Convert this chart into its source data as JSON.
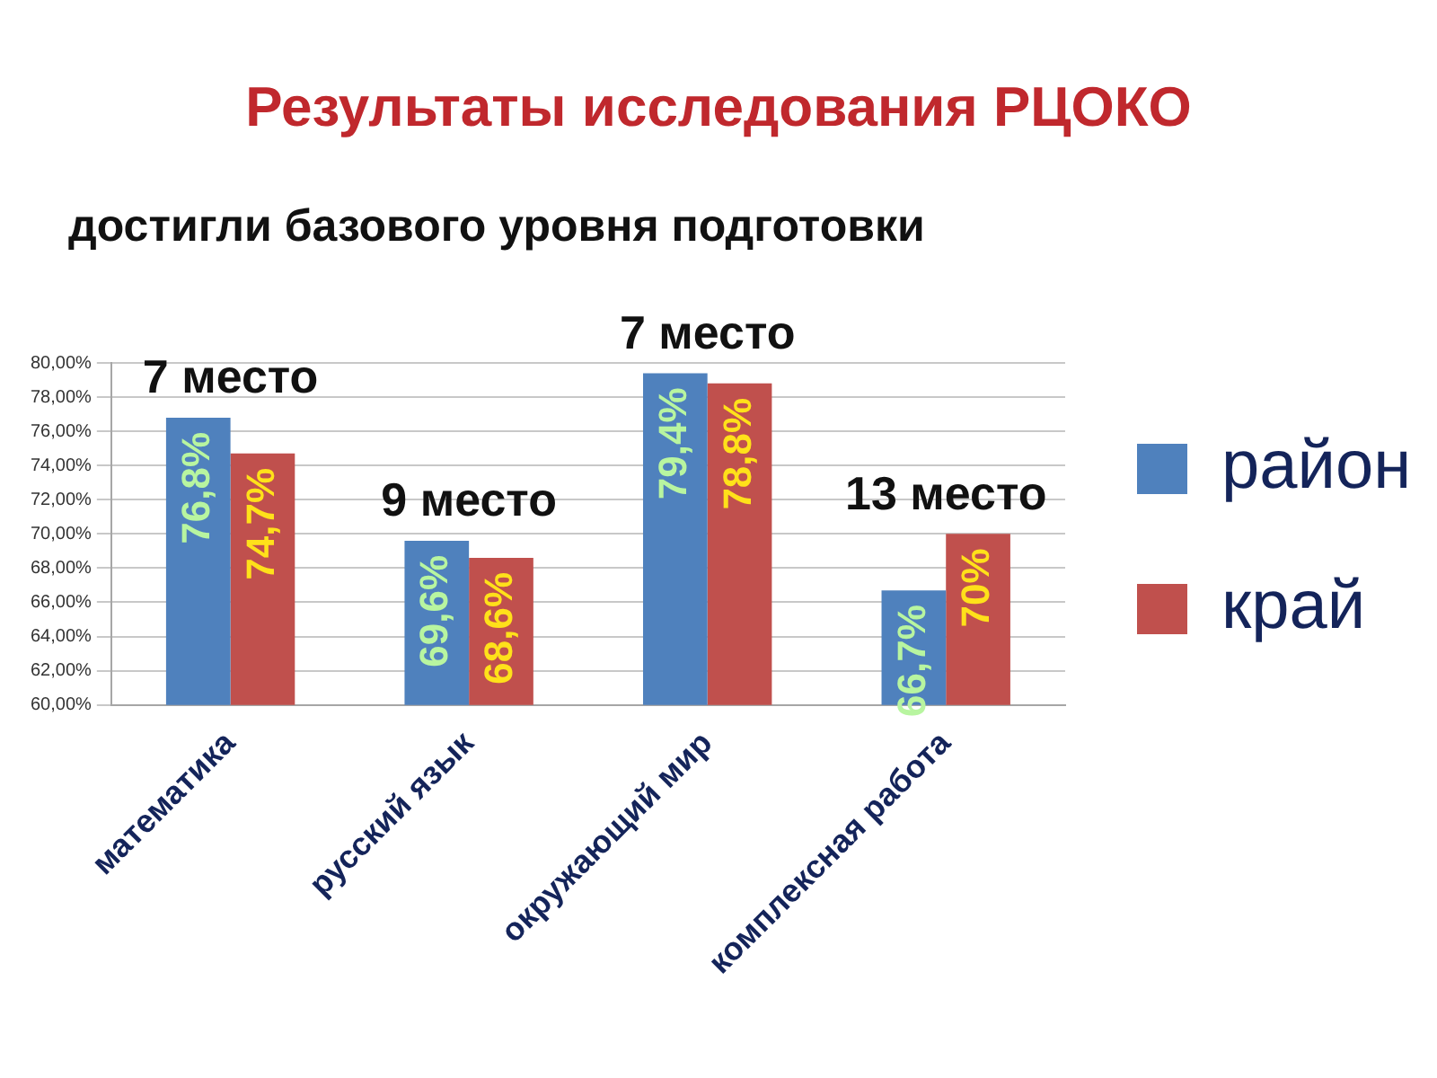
{
  "chart_data": {
    "type": "bar",
    "title": "Результаты исследования РЦОКО",
    "subtitle": "достигли базового уровня подготовки",
    "categories": [
      "математика",
      "русский язык",
      "окружающий мир",
      "комплексная работа"
    ],
    "series": [
      {
        "name": "район",
        "color": "#4f81bd",
        "values": [
          76.8,
          69.6,
          79.4,
          66.7
        ],
        "value_labels": [
          "76,8%",
          "69,6%",
          "79,4%",
          "66,7%"
        ]
      },
      {
        "name": "край",
        "color": "#c0504d",
        "values": [
          74.7,
          68.6,
          78.8,
          70
        ],
        "value_labels": [
          "74,7%",
          "68,6%",
          "78,8%",
          "70%"
        ]
      }
    ],
    "ylim": [
      60,
      80
    ],
    "yticks": [
      {
        "value": 60,
        "label": "60,00%"
      },
      {
        "value": 62,
        "label": "62,00%"
      },
      {
        "value": 64,
        "label": "64,00%"
      },
      {
        "value": 66,
        "label": "66,00%"
      },
      {
        "value": 68,
        "label": "68,00%"
      },
      {
        "value": 70,
        "label": "70,00%"
      },
      {
        "value": 72,
        "label": "72,00%"
      },
      {
        "value": 74,
        "label": "74,00%"
      },
      {
        "value": 76,
        "label": "76,00%"
      },
      {
        "value": 78,
        "label": "78,00%"
      },
      {
        "value": 80,
        "label": "80,00%"
      }
    ],
    "grid": "y",
    "legend": "right",
    "annotations": [
      "7 место",
      "9 место",
      "7 место",
      "13 место"
    ]
  }
}
